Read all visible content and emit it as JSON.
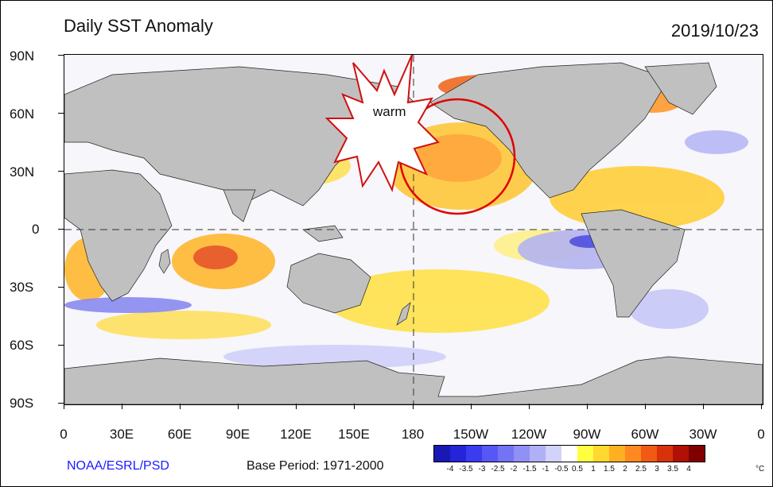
{
  "header": {
    "title": "Daily SST Anomaly",
    "date": "2019/10/23"
  },
  "axes": {
    "lat_labels": [
      "90N",
      "60N",
      "30N",
      "0",
      "30S",
      "60S",
      "90S"
    ],
    "lon_labels": [
      "0",
      "30E",
      "60E",
      "90E",
      "120E",
      "150E",
      "180",
      "150W",
      "120W",
      "90W",
      "60W",
      "30W",
      "0"
    ]
  },
  "annotation": {
    "text": "warm"
  },
  "footer": {
    "credit": "NOAA/ESRL/PSD",
    "base_period": "Base Period: 1971-2000"
  },
  "legend": {
    "labels": [
      "-4",
      "-3.5",
      "-3",
      "-2.5",
      "-2",
      "-1.5",
      "-1",
      "-0.5",
      "0.5",
      "1",
      "1.5",
      "2",
      "2.5",
      "3",
      "3.5",
      "4"
    ],
    "unit": "°C",
    "colors": [
      "#1a18b4",
      "#2424d8",
      "#3b3bf0",
      "#5757f5",
      "#7373f5",
      "#9090f5",
      "#b0b0f7",
      "#d2d2fa",
      "#ffffff",
      "#ffff40",
      "#ffd830",
      "#ffb020",
      "#ff8820",
      "#f05a14",
      "#d8320a",
      "#b01005",
      "#800000"
    ]
  },
  "colors": {
    "land": "#c0c0c0",
    "circle": "#e00000",
    "credit": "#1a1aff"
  }
}
